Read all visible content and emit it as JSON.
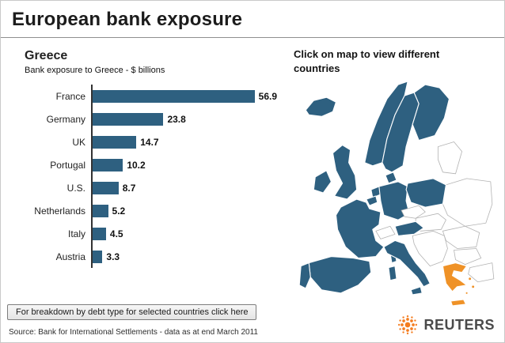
{
  "header": {
    "title": "European bank exposure"
  },
  "chart_data": {
    "type": "bar",
    "orientation": "horizontal",
    "title": "Greece",
    "subtitle": "Bank exposure to Greece - $ billions",
    "categories": [
      "France",
      "Germany",
      "UK",
      "Portugal",
      "U.S.",
      "Netherlands",
      "Italy",
      "Austria"
    ],
    "values": [
      56.9,
      23.8,
      14.7,
      10.2,
      8.7,
      5.2,
      4.5,
      3.3
    ],
    "xlabel": "",
    "ylabel": "",
    "xlim": [
      0,
      62
    ],
    "grid": false,
    "bar_color": "#2e6080"
  },
  "map": {
    "instruction": "Click on map to view different countries",
    "highlighted_country": "Greece",
    "country_color": "#2e6080",
    "highlight_color": "#ef9227",
    "inactive_color": "#ffffff"
  },
  "footer": {
    "breakdown_button": "For breakdown by debt type for selected countries click here",
    "source": "Source: Bank for International Settlements - data as at end March 2011",
    "logo_text": "REUTERS"
  },
  "colors": {
    "bar_blue": "#2e6080",
    "greece_orange": "#ef9227",
    "reuters_orange": "#f47d20"
  }
}
